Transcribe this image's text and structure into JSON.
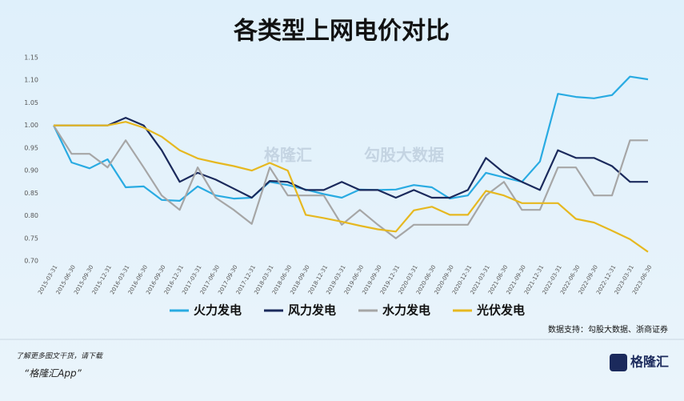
{
  "chart_data": {
    "type": "line",
    "title": "各类型上网电价对比",
    "categories": [
      "2015-03-31",
      "2015-06-30",
      "2015-09-30",
      "2015-12-31",
      "2016-03-31",
      "2016-06-30",
      "2016-09-30",
      "2016-12-31",
      "2017-03-31",
      "2017-06-30",
      "2017-09-30",
      "2017-12-31",
      "2018-03-31",
      "2018-06-30",
      "2018-09-30",
      "2018-12-31",
      "2019-03-31",
      "2019-06-30",
      "2019-09-30",
      "2019-12-31",
      "2020-03-31",
      "2020-06-30",
      "2020-09-30",
      "2020-12-31",
      "2021-03-31",
      "2021-06-30",
      "2021-09-30",
      "2021-12-31",
      "2022-03-31",
      "2022-06-30",
      "2022-09-30",
      "2022-12-31",
      "2023-03-31",
      "2023-06-30"
    ],
    "series": [
      {
        "name": "火力发电",
        "color": "#29abe2",
        "values": [
          1.0,
          0.918,
          0.905,
          0.925,
          0.863,
          0.865,
          0.835,
          0.833,
          0.865,
          0.845,
          0.838,
          0.84,
          0.875,
          0.868,
          0.858,
          0.848,
          0.84,
          0.858,
          0.857,
          0.858,
          0.868,
          0.863,
          0.838,
          0.845,
          0.895,
          0.885,
          0.875,
          0.92,
          1.07,
          1.063,
          1.06,
          1.067,
          1.108,
          1.102
        ]
      },
      {
        "name": "风力发电",
        "color": "#1b2a5c",
        "values": [
          1.0,
          1.0,
          1.0,
          1.0,
          1.017,
          1.0,
          0.945,
          0.875,
          0.895,
          0.88,
          0.86,
          0.84,
          0.877,
          0.875,
          0.857,
          0.857,
          0.875,
          0.857,
          0.857,
          0.84,
          0.857,
          0.84,
          0.84,
          0.857,
          0.928,
          0.895,
          0.875,
          0.857,
          0.945,
          0.928,
          0.928,
          0.91,
          0.875,
          0.875
        ]
      },
      {
        "name": "水力发电",
        "color": "#a6a6a6",
        "values": [
          1.0,
          0.937,
          0.937,
          0.907,
          0.967,
          0.907,
          0.845,
          0.813,
          0.907,
          0.84,
          0.813,
          0.782,
          0.907,
          0.845,
          0.845,
          0.845,
          0.78,
          0.813,
          0.78,
          0.75,
          0.78,
          0.78,
          0.78,
          0.78,
          0.845,
          0.875,
          0.813,
          0.813,
          0.907,
          0.907,
          0.845,
          0.845,
          0.967,
          0.967
        ]
      },
      {
        "name": "光伏发电",
        "color": "#e6b820",
        "values": [
          1.0,
          1.0,
          1.0,
          1.0,
          1.008,
          0.995,
          0.975,
          0.945,
          0.927,
          0.918,
          0.91,
          0.9,
          0.917,
          0.9,
          0.802,
          0.795,
          0.787,
          0.778,
          0.77,
          0.765,
          0.812,
          0.82,
          0.802,
          0.802,
          0.855,
          0.845,
          0.828,
          0.828,
          0.828,
          0.793,
          0.785,
          0.767,
          0.748,
          0.72
        ]
      }
    ],
    "ylim": [
      0.7,
      1.15
    ],
    "yticks": [
      {
        "value": 0.7,
        "label": "0.70"
      },
      {
        "value": 0.75,
        "label": "0.75"
      },
      {
        "value": 0.8,
        "label": "0.80"
      },
      {
        "value": 0.85,
        "label": "0.85"
      },
      {
        "value": 0.9,
        "label": "0.90"
      },
      {
        "value": 0.95,
        "label": "0.95"
      },
      {
        "value": 1.0,
        "label": "1.00"
      },
      {
        "value": 1.05,
        "label": "1.05"
      },
      {
        "value": 1.1,
        "label": "1.10"
      },
      {
        "value": 1.15,
        "label": "1.15"
      }
    ],
    "grid": false,
    "legend": "bottom",
    "source": "数据支持：勾股大数据、浙商证券",
    "watermark": [
      "格隆汇",
      "勾股大数据"
    ]
  },
  "footer": {
    "line1": "了解更多图文干货，请下载",
    "line2": "“格隆汇App”",
    "logo": "格隆汇"
  }
}
